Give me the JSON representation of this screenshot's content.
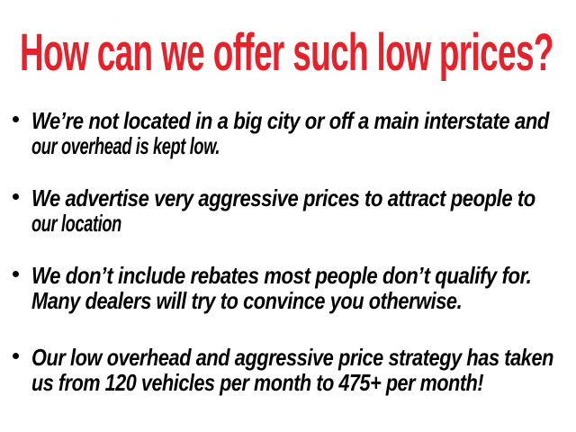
{
  "title": "How can we offer such low prices?",
  "colors": {
    "title": "#e8202a",
    "text": "#000000"
  },
  "bullets": [
    {
      "lines": [
        "We’re not located in a big city or off a main interstate and",
        "our overhead is kept low."
      ]
    },
    {
      "lines": [
        "We advertise very aggressive prices to attract people to",
        "our location"
      ]
    },
    {
      "lines": [
        "We don’t include rebates most people don’t qualify for.",
        "Many dealers will try to convince you otherwise."
      ]
    },
    {
      "lines": [
        "Our low overhead and aggressive price strategy has taken",
        "us from 120 vehicles per month to 475+ per month!"
      ]
    }
  ]
}
